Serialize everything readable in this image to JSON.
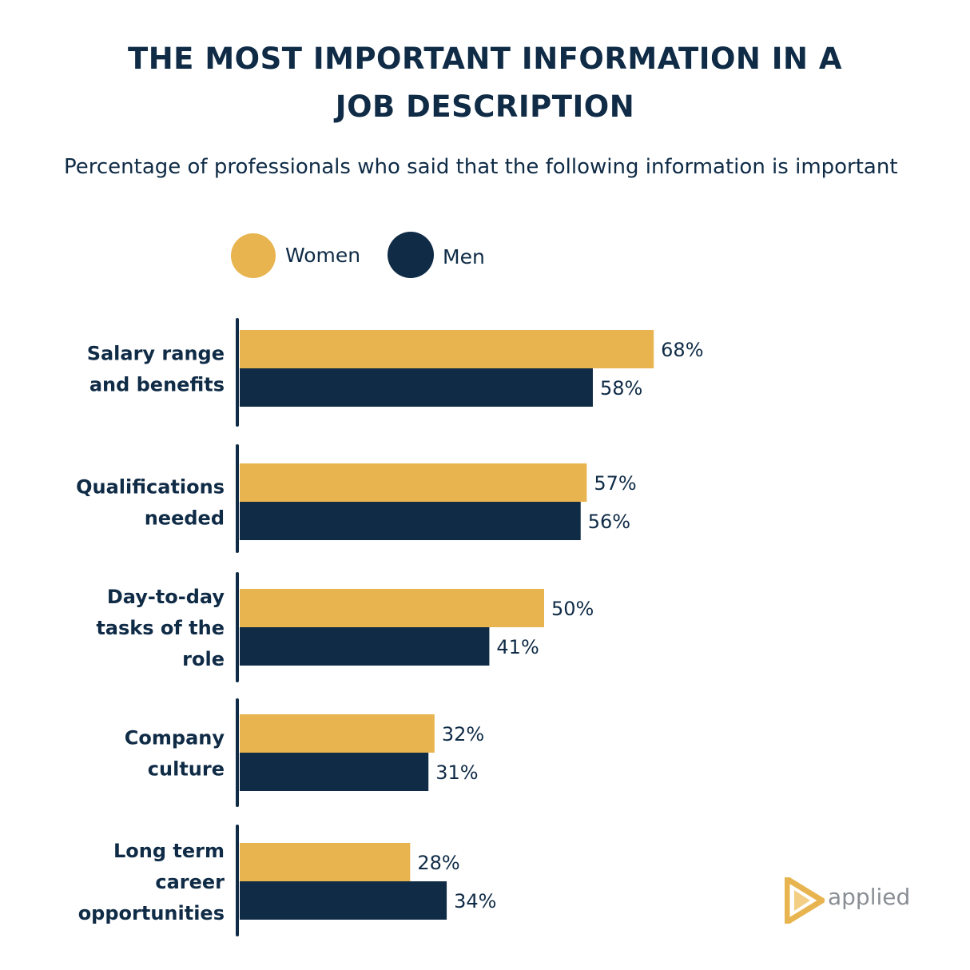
{
  "chart_data": {
    "type": "bar",
    "orientation": "horizontal",
    "title_lines": [
      "THE MOST IMPORTANT INFORMATION IN A",
      "JOB DESCRIPTION"
    ],
    "subtitle": "Percentage of professionals who said that the following information is important",
    "categories": [
      [
        "Salary range",
        "and benefits"
      ],
      [
        "Qualifications",
        "needed"
      ],
      [
        "Day-to-day",
        "tasks of the",
        "role"
      ],
      [
        "Company",
        "culture"
      ],
      [
        "Long term",
        "career",
        "opportunities"
      ]
    ],
    "series": [
      {
        "name": "Women",
        "color": "#e8b44f",
        "values": [
          68,
          57,
          50,
          32,
          28
        ]
      },
      {
        "name": "Men",
        "color": "#0f2b46",
        "values": [
          58,
          56,
          41,
          31,
          34
        ]
      }
    ],
    "value_suffix": "%",
    "xlim": [
      0,
      100
    ],
    "grid": false,
    "legend_position": "top"
  },
  "legend": {
    "women_label": "Women",
    "men_label": "Men",
    "women_color": "#e8b44f",
    "men_color": "#0f2b46"
  },
  "logo": {
    "text": "applied",
    "icon": "play-triangle-icon",
    "color": "#e8b44f"
  }
}
